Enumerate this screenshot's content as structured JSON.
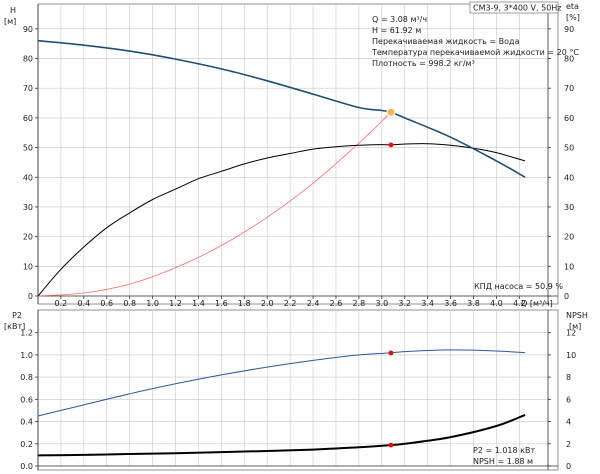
{
  "pump_name": "CM3-9, 3*400 V, 50Hz",
  "top": {
    "ylabel_left": "H",
    "ylabel_left_unit": "[м]",
    "ylabel_right": "eta",
    "ylabel_right_unit": "[%]",
    "xlabel": "Q [м³/ч]",
    "info_lines": [
      "Q = 3.08 м³/ч",
      "H = 61.92 м",
      "Перекачиваемая жидкость = Вода",
      "Температура перекачиваемой жидкости = 20 °C",
      "Плотность = 998.2 кг/м³"
    ],
    "efficiency_label": "КПД насоса = 50.9 %"
  },
  "bottom": {
    "ylabel_left": "P2",
    "ylabel_left_unit": "[кВт]",
    "ylabel_right": "NPSH",
    "ylabel_right_unit": "[м]",
    "info_lines": [
      "P2 = 1.018 кВт",
      "NPSH = 1.88 м"
    ]
  },
  "colors": {
    "head_curve": "#1f4e79",
    "eta_curve": "#000000",
    "system_curve": "#ff6b6b",
    "p2_curve": "#2a5aa0",
    "npsh_curve": "#000000",
    "duty_point": "#ff0000",
    "duty_marker": "#ffb347"
  },
  "chart_data": [
    {
      "type": "line",
      "x_ticks": [
        "0.2",
        "0.4",
        "0.6",
        "0.8",
        "1.0",
        "1.2",
        "1.4",
        "1.6",
        "1.8",
        "2.0",
        "2.2",
        "2.4",
        "2.6",
        "2.8",
        "3.0",
        "3.2",
        "3.4",
        "3.6",
        "3.8",
        "4.0",
        "4.2"
      ],
      "xlim": [
        0,
        4.45
      ],
      "ylim_left": [
        0,
        95
      ],
      "ylim_right": [
        0,
        95
      ],
      "y_ticks_left": [
        "0",
        "10",
        "20",
        "30",
        "40",
        "50",
        "60",
        "70",
        "80",
        "90"
      ],
      "y_ticks_right": [
        "0",
        "10",
        "20",
        "30",
        "40",
        "50",
        "60",
        "70",
        "80",
        "90"
      ],
      "grid": true,
      "series": [
        {
          "key": "head",
          "x": [
            0,
            0.4,
            0.8,
            1.2,
            1.6,
            2.0,
            2.4,
            2.8,
            3.0,
            3.08,
            3.2,
            3.6,
            4.0,
            4.25
          ],
          "y": [
            86,
            84.5,
            82.5,
            79.8,
            76.5,
            72.5,
            68,
            63.5,
            62.5,
            61.92,
            60,
            53.5,
            45.5,
            40
          ]
        },
        {
          "key": "eta",
          "x": [
            0,
            0.2,
            0.4,
            0.6,
            0.8,
            1.0,
            1.2,
            1.4,
            1.6,
            1.8,
            2.0,
            2.2,
            2.4,
            2.6,
            2.8,
            3.0,
            3.08,
            3.2,
            3.4,
            3.6,
            3.8,
            4.0,
            4.25
          ],
          "y": [
            0,
            9,
            16.5,
            23,
            28,
            32.5,
            36,
            39.5,
            42,
            44.5,
            46.5,
            48,
            49.5,
            50.3,
            50.8,
            51,
            50.9,
            51.2,
            51.3,
            50.8,
            49.8,
            48.3,
            45.5
          ]
        },
        {
          "key": "system",
          "x": [
            0,
            0.4,
            0.8,
            1.2,
            1.6,
            2.0,
            2.4,
            2.8,
            3.08
          ],
          "y": [
            0,
            1,
            4,
            9.5,
            17,
            26.5,
            38,
            51.5,
            61.92
          ]
        }
      ],
      "duty_point": {
        "x": 3.08,
        "head": 61.92,
        "eta": 50.9
      }
    },
    {
      "type": "line",
      "xlim": [
        0,
        4.45
      ],
      "ylim_left": [
        0,
        1.35
      ],
      "ylim_right": [
        0,
        13.5
      ],
      "y_ticks_left": [
        "0.0",
        "0.2",
        "0.4",
        "0.6",
        "0.8",
        "1.0",
        "1.2"
      ],
      "y_ticks_right": [
        "0",
        "2",
        "4",
        "6",
        "8",
        "10",
        "12"
      ],
      "grid": true,
      "series": [
        {
          "key": "p2",
          "x": [
            0,
            0.4,
            0.8,
            1.2,
            1.6,
            2.0,
            2.4,
            2.8,
            3.08,
            3.2,
            3.6,
            4.0,
            4.25
          ],
          "y": [
            0.45,
            0.55,
            0.65,
            0.74,
            0.82,
            0.89,
            0.95,
            1.0,
            1.018,
            1.03,
            1.045,
            1.035,
            1.02
          ]
        },
        {
          "key": "npsh",
          "x": [
            0,
            0.4,
            0.8,
            1.2,
            1.6,
            2.0,
            2.4,
            2.8,
            3.08,
            3.2,
            3.6,
            4.0,
            4.25
          ],
          "y": [
            0.95,
            1.0,
            1.08,
            1.15,
            1.25,
            1.35,
            1.48,
            1.68,
            1.88,
            2.0,
            2.6,
            3.6,
            4.6
          ]
        }
      ],
      "duty_point": {
        "x": 3.08,
        "p2": 1.018,
        "npsh": 1.88
      }
    }
  ]
}
